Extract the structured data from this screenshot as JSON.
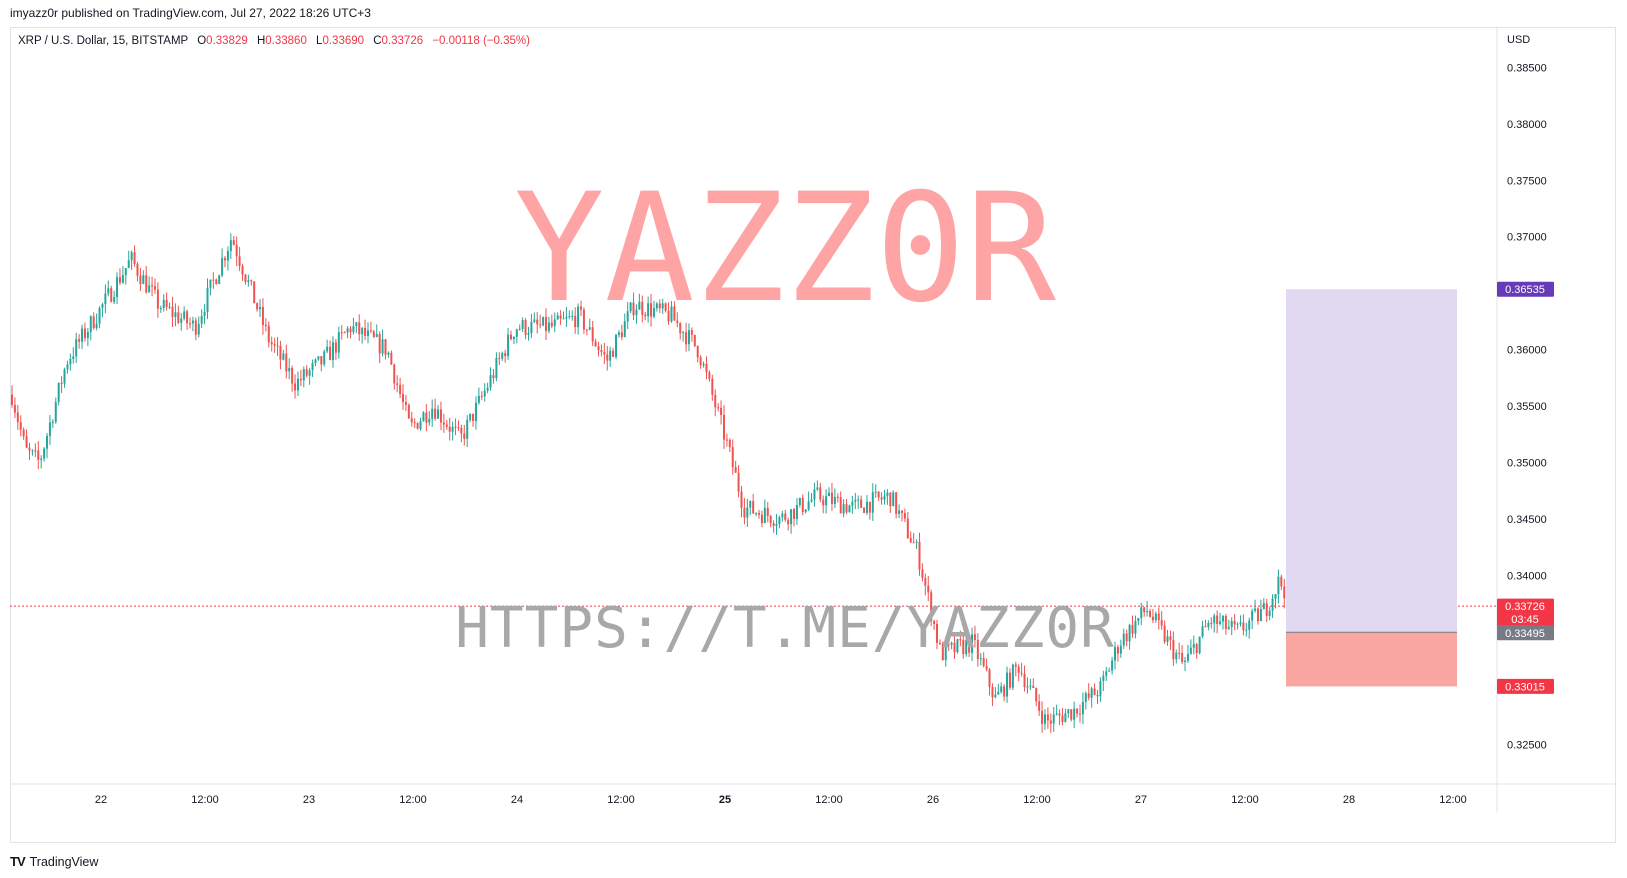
{
  "header": {
    "published": "imyazz0r published on TradingView.com, Jul 27, 2022 18:26 UTC+3"
  },
  "legend": {
    "symbol": "XRP / U.S. Dollar, 15, BITSTAMP",
    "o_label": "O",
    "o_value": "0.33829",
    "h_label": "H",
    "h_value": "0.33860",
    "l_label": "L",
    "l_value": "0.33690",
    "c_label": "C",
    "c_value": "0.33726",
    "change": "−0.00118 (−0.35%)"
  },
  "watermarks": {
    "top": "YAZZ0R",
    "bottom": "HTTPS://T.ME/YAZZ0R"
  },
  "footer": {
    "brand": "TradingView",
    "logo": "TV"
  },
  "colors": {
    "up": "#26a69a",
    "down": "#ef5350",
    "text": "#131722",
    "profit_zone": "#e1d9f2",
    "loss_zone": "#f9a6a0",
    "target_tag": "#673ab7",
    "stop_tag": "#f23645",
    "entry_tag": "#787b86",
    "last_price_tag": "#f23645",
    "watermark_top": "#ff9a9a",
    "watermark_bottom": "#a8a8a8"
  },
  "chart_data": {
    "type": "candlestick",
    "currency_label": "USD",
    "y_ticks": [
      "0.38500",
      "0.38000",
      "0.37500",
      "0.37000",
      "0.36000",
      "0.35500",
      "0.35000",
      "0.34500",
      "0.34000",
      "0.32500"
    ],
    "x_ticks": [
      {
        "label": "22",
        "bold": false
      },
      {
        "label": "12:00",
        "bold": false
      },
      {
        "label": "23",
        "bold": false
      },
      {
        "label": "12:00",
        "bold": false
      },
      {
        "label": "24",
        "bold": false
      },
      {
        "label": "12:00",
        "bold": false
      },
      {
        "label": "25",
        "bold": true
      },
      {
        "label": "12:00",
        "bold": false
      },
      {
        "label": "26",
        "bold": false
      },
      {
        "label": "12:00",
        "bold": false
      },
      {
        "label": "27",
        "bold": false
      },
      {
        "label": "12:00",
        "bold": false
      },
      {
        "label": "28",
        "bold": false
      },
      {
        "label": "12:00",
        "bold": false
      }
    ],
    "ylim": [
      0.3215,
      0.3885
    ],
    "last_price": {
      "value": 0.33726,
      "label": "0.33726",
      "countdown": "03:45"
    },
    "position": {
      "target": {
        "value": 0.36535,
        "label": "0.36535"
      },
      "entry": {
        "value": 0.33495,
        "label": "0.33495"
      },
      "stop": {
        "value": 0.33015,
        "label": "0.33015"
      }
    },
    "price_path_anchors": [
      [
        0,
        0.356
      ],
      [
        0.15,
        0.351
      ],
      [
        0.3,
        0.35
      ],
      [
        0.6,
        0.359
      ],
      [
        1.0,
        0.364
      ],
      [
        1.3,
        0.368
      ],
      [
        1.6,
        0.364
      ],
      [
        2.0,
        0.362
      ],
      [
        2.4,
        0.37
      ],
      [
        2.8,
        0.361
      ],
      [
        3.1,
        0.357
      ],
      [
        3.4,
        0.359
      ],
      [
        3.7,
        0.362
      ],
      [
        4.1,
        0.36
      ],
      [
        4.35,
        0.353
      ],
      [
        4.6,
        0.355
      ],
      [
        4.9,
        0.352
      ],
      [
        5.15,
        0.356
      ],
      [
        5.5,
        0.362
      ],
      [
        5.9,
        0.362
      ],
      [
        6.2,
        0.363
      ],
      [
        6.5,
        0.359
      ],
      [
        6.8,
        0.364
      ],
      [
        7.2,
        0.363
      ],
      [
        7.5,
        0.36
      ],
      [
        7.8,
        0.352
      ],
      [
        8.0,
        0.346
      ],
      [
        8.4,
        0.345
      ],
      [
        8.8,
        0.347
      ],
      [
        9.2,
        0.346
      ],
      [
        9.6,
        0.347
      ],
      [
        9.9,
        0.342
      ],
      [
        10.15,
        0.333
      ],
      [
        10.5,
        0.334
      ],
      [
        10.75,
        0.329
      ],
      [
        11.0,
        0.332
      ],
      [
        11.3,
        0.327
      ],
      [
        11.6,
        0.328
      ],
      [
        11.9,
        0.33
      ],
      [
        12.1,
        0.334
      ],
      [
        12.4,
        0.337
      ],
      [
        12.8,
        0.332
      ],
      [
        13.1,
        0.336
      ],
      [
        13.4,
        0.335
      ],
      [
        13.7,
        0.337
      ],
      [
        13.85,
        0.3395
      ],
      [
        14.0,
        0.3375
      ]
    ],
    "x_range_index": [
      0,
      14.0
    ]
  }
}
